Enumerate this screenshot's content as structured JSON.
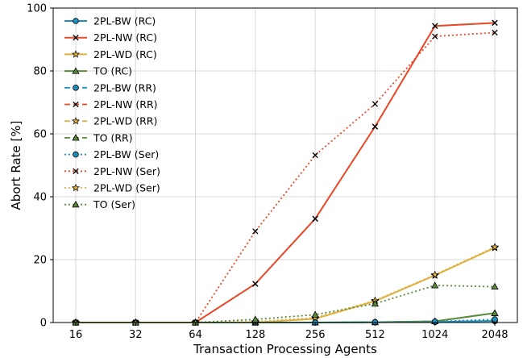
{
  "chart_data": {
    "type": "line",
    "xlabel": "Transaction Processing Agents",
    "ylabel": "Abort Rate [%]",
    "categories": [
      "16",
      "32",
      "64",
      "128",
      "256",
      "512",
      "1024",
      "2048"
    ],
    "ylim": [
      0,
      100
    ],
    "yticks": [
      0,
      20,
      40,
      60,
      80,
      100
    ],
    "grid": true,
    "legend_position": "top-left",
    "series": [
      {
        "name": "2PL-BW (RC)",
        "color": "#1f8fbf",
        "linestyle": "solid",
        "marker": "circle",
        "values": [
          0,
          0,
          0,
          0,
          0,
          0.1,
          0.2,
          0.5
        ]
      },
      {
        "name": "2PL-NW (RC)",
        "color": "#e84a2a",
        "linestyle": "solid",
        "marker": "x",
        "values": [
          0,
          0,
          0,
          12.3,
          33.0,
          62.3,
          94.3,
          95.3
        ]
      },
      {
        "name": "2PL-WD (RC)",
        "color": "#e0b040",
        "linestyle": "solid",
        "marker": "star",
        "values": [
          0,
          0,
          0,
          0,
          1.2,
          6.8,
          15.0,
          23.8
        ]
      },
      {
        "name": "TO (RC)",
        "color": "#5a8a3a",
        "linestyle": "solid",
        "marker": "triangle",
        "values": [
          0,
          0,
          0,
          0,
          0,
          0.1,
          0.4,
          3.0
        ]
      },
      {
        "name": "2PL-BW (RR)",
        "color": "#1f8fbf",
        "linestyle": "dashed",
        "marker": "circle",
        "values": [
          0,
          0,
          0,
          0,
          0,
          0.1,
          0.2,
          0.5
        ]
      },
      {
        "name": "2PL-NW (RR)",
        "color": "#e84a2a",
        "linestyle": "dashed",
        "marker": "x",
        "values": [
          0,
          0,
          0,
          12.3,
          33.0,
          62.3,
          94.3,
          95.3
        ]
      },
      {
        "name": "2PL-WD (RR)",
        "color": "#e0b040",
        "linestyle": "dashed",
        "marker": "star",
        "values": [
          0,
          0,
          0,
          0,
          1.2,
          6.8,
          15.0,
          23.8
        ]
      },
      {
        "name": "TO (RR)",
        "color": "#5a8a3a",
        "linestyle": "dashed",
        "marker": "triangle",
        "values": [
          0,
          0,
          0,
          0,
          0,
          0.1,
          0.4,
          3.0
        ]
      },
      {
        "name": "2PL-BW (Ser)",
        "color": "#1f8fbf",
        "linestyle": "dotted",
        "marker": "circle",
        "values": [
          0,
          0,
          0,
          0,
          0,
          0.1,
          0.3,
          1.0
        ]
      },
      {
        "name": "2PL-NW (Ser)",
        "color": "#e84a2a",
        "linestyle": "dotted",
        "marker": "x",
        "values": [
          0,
          0,
          0,
          29.0,
          53.2,
          69.5,
          91.0,
          92.2
        ]
      },
      {
        "name": "2PL-WD (Ser)",
        "color": "#e0b040",
        "linestyle": "dotted",
        "marker": "star",
        "values": [
          0,
          0,
          0,
          0.3,
          1.5,
          7.0,
          15.2,
          24.0
        ]
      },
      {
        "name": "TO (Ser)",
        "color": "#5a8a3a",
        "linestyle": "dotted",
        "marker": "triangle",
        "values": [
          0,
          0,
          0,
          1.0,
          2.5,
          6.0,
          11.8,
          11.4
        ]
      }
    ]
  }
}
